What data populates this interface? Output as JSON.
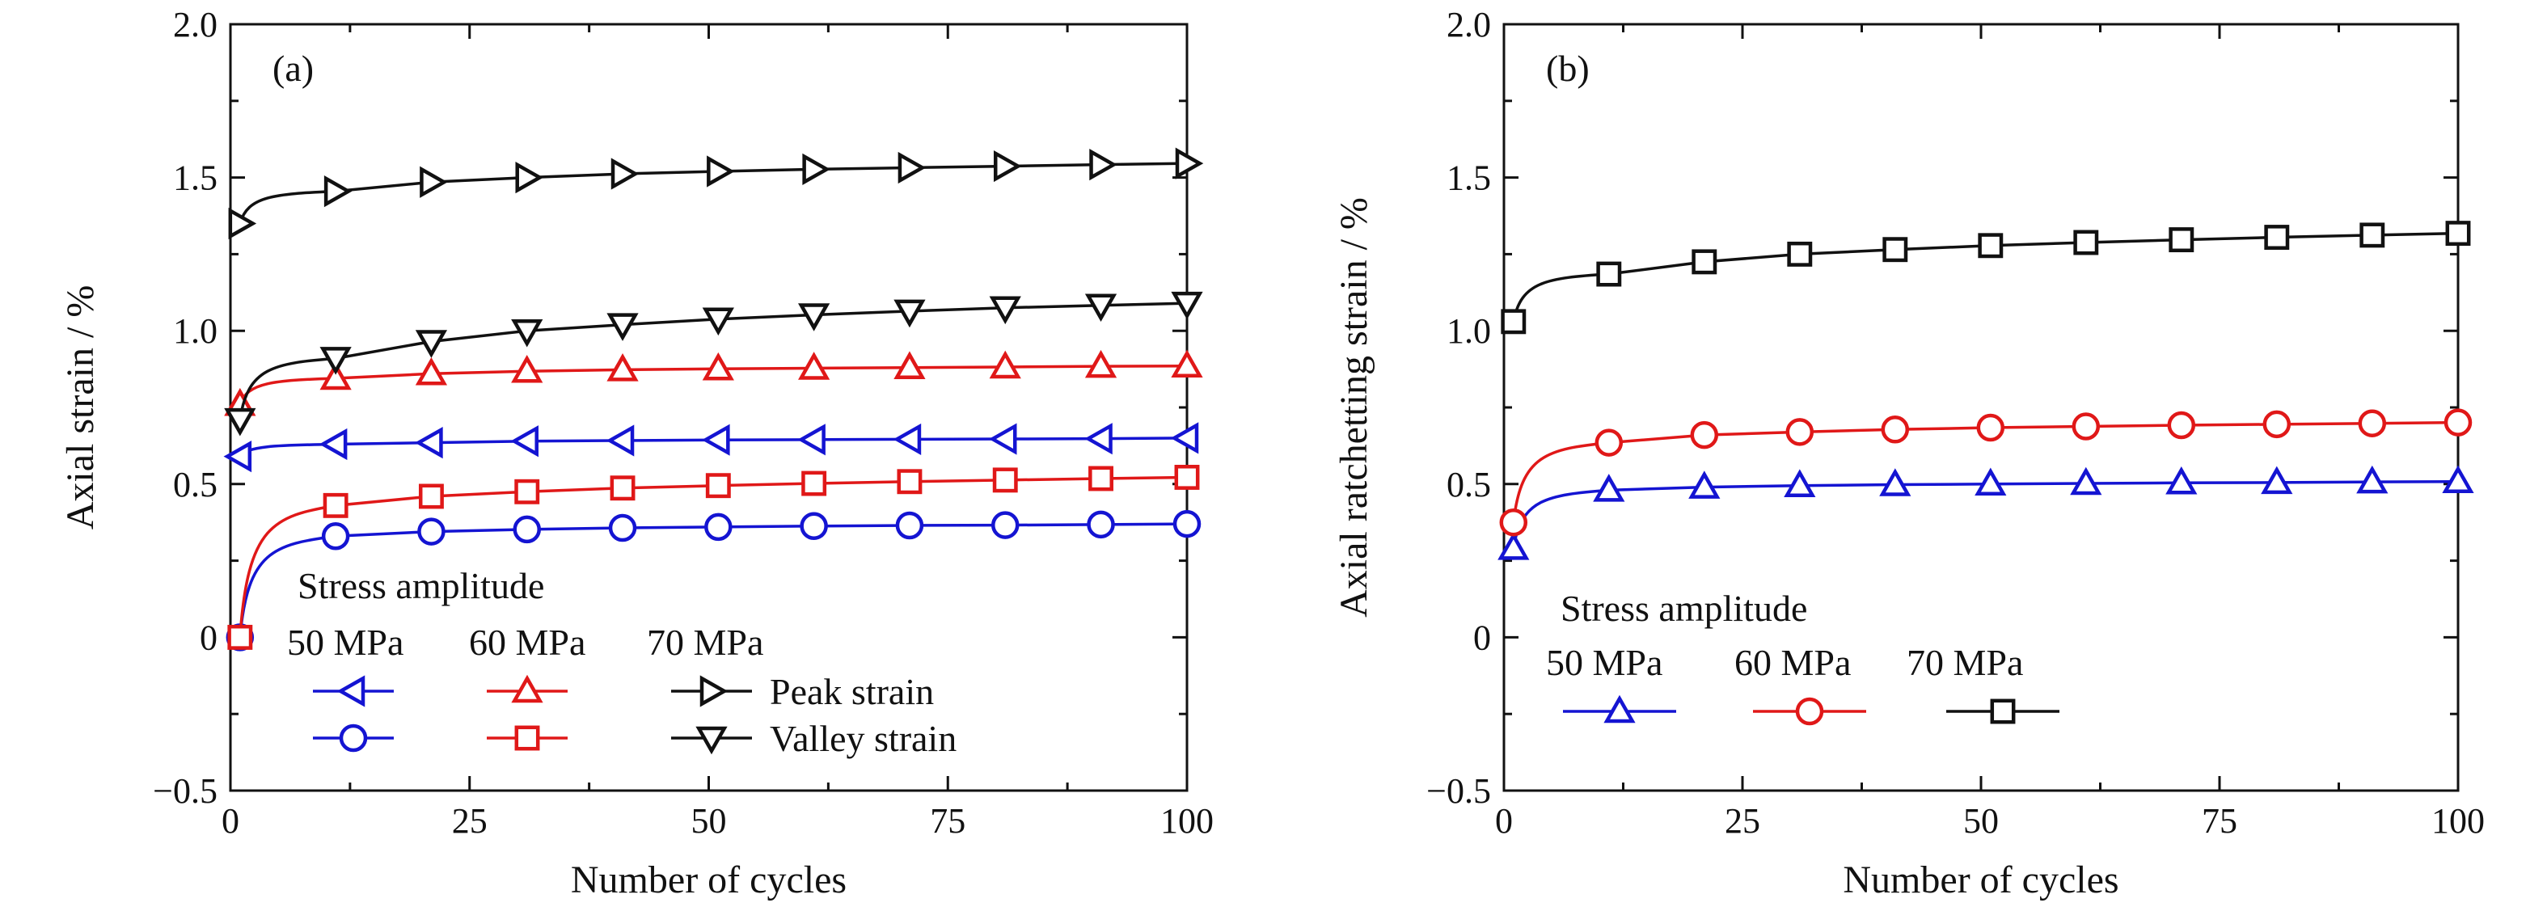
{
  "chart_data": [
    {
      "type": "line",
      "panel_label": "(a)",
      "xlabel": "Number of cycles",
      "ylabel": "Axial strain / %",
      "xlim": [
        0,
        100
      ],
      "ylim": [
        -0.5,
        2.0
      ],
      "xticks": [
        0,
        25,
        50,
        75,
        100
      ],
      "yticks": [
        -0.5,
        0,
        0.5,
        1.0,
        1.5,
        2.0
      ],
      "xtick_labels": [
        "0",
        "25",
        "50",
        "75",
        "100"
      ],
      "ytick_labels": [
        "−0.5",
        "0",
        "0.5",
        "1.0",
        "1.5",
        "2.0"
      ],
      "grid": false,
      "legend": {
        "title": "Stress amplitude",
        "columns": [
          "50 MPa",
          "60 MPa",
          "70 MPa"
        ],
        "rows": [
          "Peak strain",
          "Valley strain"
        ],
        "placement": "bottom-left"
      },
      "series": [
        {
          "amplitude": "50 MPa",
          "kind": "Peak strain",
          "color": "#1414d2",
          "marker": "triangle-left",
          "x": [
            1,
            11,
            21,
            31,
            41,
            51,
            61,
            71,
            81,
            91,
            100
          ],
          "y": [
            0.59,
            0.63,
            0.635,
            0.64,
            0.642,
            0.644,
            0.645,
            0.646,
            0.647,
            0.648,
            0.65
          ]
        },
        {
          "amplitude": "50 MPa",
          "kind": "Valley strain",
          "color": "#1414d2",
          "marker": "circle",
          "x": [
            1,
            11,
            21,
            31,
            41,
            51,
            61,
            71,
            81,
            91,
            100
          ],
          "y": [
            0.0,
            0.33,
            0.345,
            0.352,
            0.357,
            0.36,
            0.363,
            0.365,
            0.366,
            0.368,
            0.37
          ]
        },
        {
          "amplitude": "60 MPa",
          "kind": "Peak strain",
          "color": "#e01818",
          "marker": "triangle-up",
          "x": [
            1,
            11,
            21,
            31,
            41,
            51,
            61,
            71,
            81,
            91,
            100
          ],
          "y": [
            0.76,
            0.845,
            0.86,
            0.868,
            0.873,
            0.876,
            0.878,
            0.88,
            0.882,
            0.884,
            0.885
          ]
        },
        {
          "amplitude": "60 MPa",
          "kind": "Valley strain",
          "color": "#e01818",
          "marker": "square",
          "x": [
            1,
            11,
            21,
            31,
            41,
            51,
            61,
            71,
            81,
            91,
            100
          ],
          "y": [
            0.0,
            0.43,
            0.46,
            0.475,
            0.487,
            0.495,
            0.502,
            0.508,
            0.513,
            0.518,
            0.522
          ]
        },
        {
          "amplitude": "70 MPa",
          "kind": "Peak strain",
          "color": "#111111",
          "marker": "triangle-right",
          "x": [
            1,
            11,
            21,
            31,
            41,
            51,
            61,
            71,
            81,
            91,
            100
          ],
          "y": [
            1.35,
            1.455,
            1.485,
            1.5,
            1.512,
            1.52,
            1.527,
            1.532,
            1.537,
            1.542,
            1.546
          ]
        },
        {
          "amplitude": "70 MPa",
          "kind": "Valley strain",
          "color": "#111111",
          "marker": "triangle-down",
          "x": [
            1,
            11,
            21,
            31,
            41,
            51,
            61,
            71,
            81,
            91,
            100
          ],
          "y": [
            0.71,
            0.91,
            0.965,
            1.0,
            1.02,
            1.038,
            1.052,
            1.064,
            1.075,
            1.083,
            1.09
          ]
        }
      ]
    },
    {
      "type": "line",
      "panel_label": "(b)",
      "xlabel": "Number of cycles",
      "ylabel": "Axial ratchetting strain / %",
      "xlim": [
        0,
        100
      ],
      "ylim": [
        -0.5,
        2.0
      ],
      "xticks": [
        0,
        25,
        50,
        75,
        100
      ],
      "yticks": [
        -0.5,
        0,
        0.5,
        1.0,
        1.5,
        2.0
      ],
      "xtick_labels": [
        "0",
        "25",
        "50",
        "75",
        "100"
      ],
      "ytick_labels": [
        "−0.5",
        "0",
        "0.5",
        "1.0",
        "1.5",
        "2.0"
      ],
      "grid": false,
      "legend": {
        "title": "Stress amplitude",
        "columns": [
          "50 MPa",
          "60 MPa",
          "70 MPa"
        ],
        "placement": "bottom-left"
      },
      "series": [
        {
          "amplitude": "50 MPa",
          "color": "#1414d2",
          "marker": "triangle-up",
          "x": [
            1,
            11,
            21,
            31,
            41,
            51,
            61,
            71,
            81,
            91,
            100
          ],
          "y": [
            0.29,
            0.48,
            0.49,
            0.495,
            0.498,
            0.5,
            0.502,
            0.504,
            0.505,
            0.507,
            0.508
          ]
        },
        {
          "amplitude": "60 MPa",
          "color": "#e01818",
          "marker": "circle",
          "x": [
            1,
            11,
            21,
            31,
            41,
            51,
            61,
            71,
            81,
            91,
            100
          ],
          "y": [
            0.375,
            0.635,
            0.66,
            0.67,
            0.678,
            0.684,
            0.688,
            0.692,
            0.695,
            0.698,
            0.701
          ]
        },
        {
          "amplitude": "70 MPa",
          "color": "#111111",
          "marker": "square",
          "x": [
            1,
            11,
            21,
            31,
            41,
            51,
            61,
            71,
            81,
            91,
            100
          ],
          "y": [
            1.03,
            1.185,
            1.225,
            1.25,
            1.265,
            1.278,
            1.288,
            1.297,
            1.305,
            1.312,
            1.318
          ]
        }
      ]
    }
  ]
}
